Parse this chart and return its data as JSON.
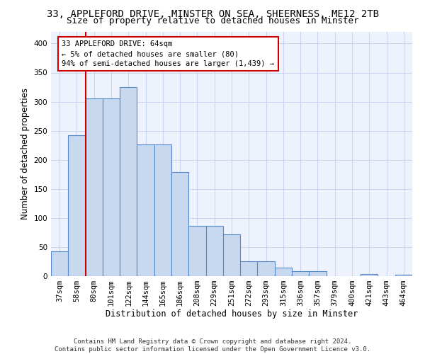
{
  "title_line1": "33, APPLEFORD DRIVE, MINSTER ON SEA, SHEERNESS, ME12 2TB",
  "title_line2": "Size of property relative to detached houses in Minster",
  "xlabel": "Distribution of detached houses by size in Minster",
  "ylabel": "Number of detached properties",
  "categories": [
    "37sqm",
    "58sqm",
    "80sqm",
    "101sqm",
    "122sqm",
    "144sqm",
    "165sqm",
    "186sqm",
    "208sqm",
    "229sqm",
    "251sqm",
    "272sqm",
    "293sqm",
    "315sqm",
    "336sqm",
    "357sqm",
    "379sqm",
    "400sqm",
    "421sqm",
    "443sqm",
    "464sqm"
  ],
  "values": [
    43,
    242,
    305,
    305,
    325,
    226,
    226,
    179,
    87,
    87,
    72,
    25,
    25,
    15,
    9,
    8,
    0,
    0,
    4,
    0,
    3
  ],
  "bar_color": "#c8d8ee",
  "bar_edge_color": "#5588cc",
  "bar_linewidth": 0.8,
  "grid_color": "#c8d4f0",
  "background_color": "#eef2fc",
  "vline_color": "#cc0000",
  "vline_x": 1.5,
  "annotation_text": "33 APPLEFORD DRIVE: 64sqm\n← 5% of detached houses are smaller (80)\n94% of semi-detached houses are larger (1,439) →",
  "footnote": "Contains HM Land Registry data © Crown copyright and database right 2024.\nContains public sector information licensed under the Open Government Licence v3.0.",
  "ylim": [
    0,
    420
  ],
  "yticks": [
    0,
    50,
    100,
    150,
    200,
    250,
    300,
    350,
    400
  ],
  "title_fontsize": 10,
  "subtitle_fontsize": 9,
  "tick_fontsize": 7.5,
  "ylabel_fontsize": 8.5,
  "xlabel_fontsize": 8.5,
  "annotation_fontsize": 7.5,
  "footnote_fontsize": 6.5
}
